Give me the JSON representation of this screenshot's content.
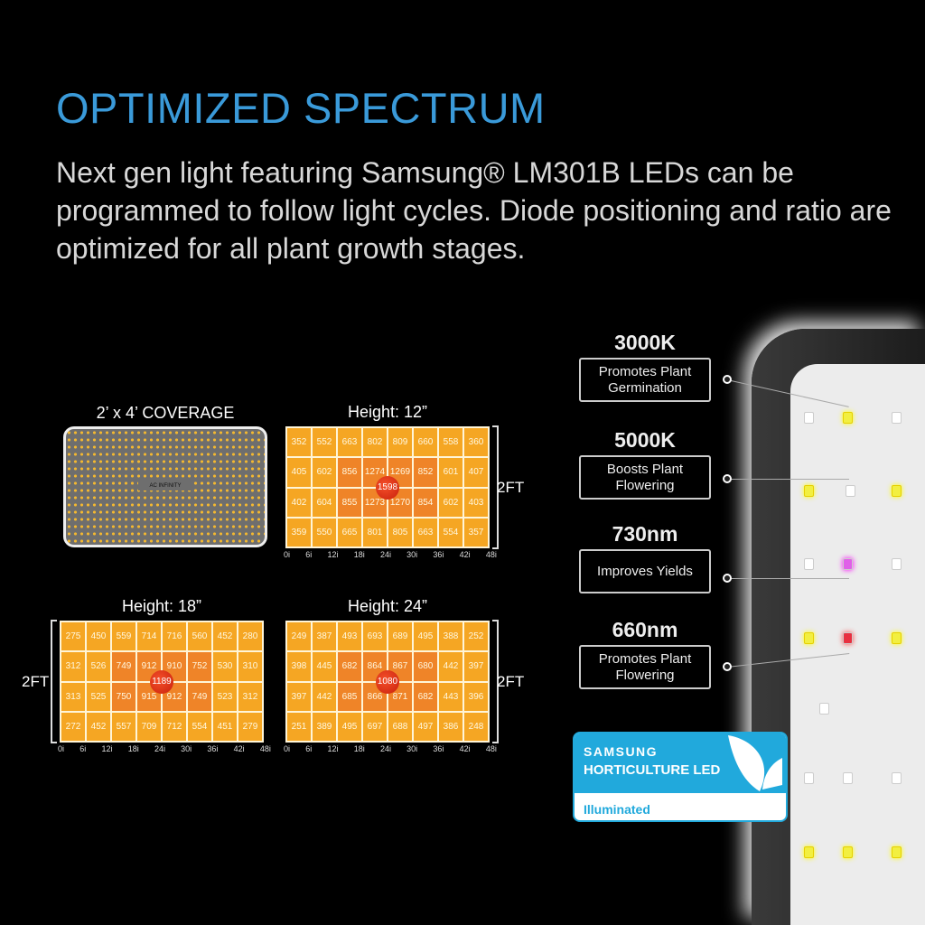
{
  "title": "OPTIMIZED SPECTRUM",
  "description": "Next gen light featuring Samsung® LM301B LEDs can be programmed to follow light cycles. Diode positioning and ratio are optimized for all plant growth stages.",
  "coverage": {
    "title": "2’ x 4’ COVERAGE",
    "logo_text": "AC INFINITY"
  },
  "dimension_label": "2FT",
  "x_ticks": [
    "0i",
    "6i",
    "12i",
    "18i",
    "24i",
    "30i",
    "36i",
    "42i",
    "48i"
  ],
  "grids": [
    {
      "title": "Height: 12”",
      "peak": "1598",
      "rows": [
        [
          352,
          552,
          663,
          802,
          809,
          660,
          558,
          360
        ],
        [
          405,
          602,
          856,
          1274,
          1269,
          852,
          601,
          407
        ],
        [
          402,
          604,
          855,
          1273,
          1270,
          854,
          602,
          403
        ],
        [
          359,
          550,
          665,
          801,
          805,
          663,
          554,
          357
        ]
      ]
    },
    {
      "title": "Height: 18”",
      "peak": "1189",
      "rows": [
        [
          275,
          450,
          559,
          714,
          716,
          560,
          452,
          280
        ],
        [
          312,
          526,
          749,
          912,
          910,
          752,
          530,
          310
        ],
        [
          313,
          525,
          750,
          915,
          912,
          749,
          523,
          312
        ],
        [
          272,
          452,
          557,
          709,
          712,
          554,
          451,
          279
        ]
      ]
    },
    {
      "title": "Height: 24”",
      "peak": "1080",
      "rows": [
        [
          249,
          387,
          493,
          693,
          689,
          495,
          388,
          252
        ],
        [
          398,
          445,
          682,
          864,
          867,
          680,
          442,
          397
        ],
        [
          397,
          442,
          685,
          866,
          871,
          682,
          443,
          396
        ],
        [
          251,
          389,
          495,
          697,
          688,
          497,
          386,
          248
        ]
      ]
    }
  ],
  "specs": [
    {
      "heading": "3000K",
      "label": "Promotes Plant Germination"
    },
    {
      "heading": "5000K",
      "label": "Boosts Plant Flowering"
    },
    {
      "heading": "730nm",
      "label": "Improves Yields"
    },
    {
      "heading": "660nm",
      "label": "Promotes Plant Flowering"
    }
  ],
  "badge": {
    "brand": "SAMSUNG",
    "line": "HORTICULTURE LED",
    "sub": "Illuminated"
  },
  "colors": {
    "title": "#3a9ad9",
    "cell": "#f5a623",
    "cell_hot": "#ef8428",
    "peak": "#d8301a",
    "badge": "#21a9dc"
  }
}
